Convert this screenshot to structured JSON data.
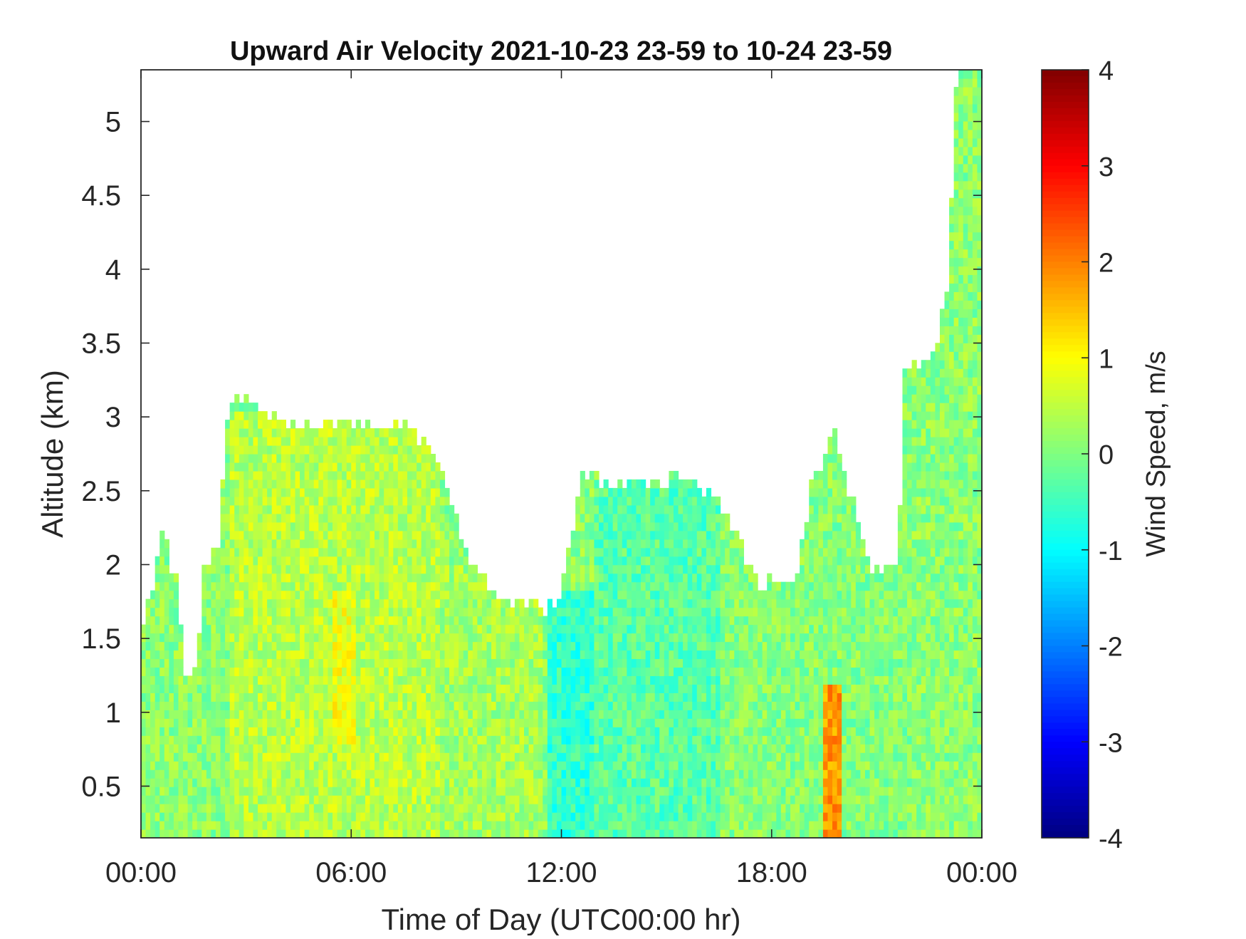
{
  "chart_data": {
    "type": "heatmap",
    "title": "Upward Air Velocity 2021-10-23 23-59 to 10-24 23-59",
    "xlabel": "Time of Day (UTC00:00 hr)",
    "ylabel": "Altitude (km)",
    "x_ticks": [
      "00:00",
      "06:00",
      "12:00",
      "18:00",
      "00:00"
    ],
    "x_tick_hours": [
      0,
      6,
      12,
      18,
      24
    ],
    "xlim_hours": [
      0,
      24
    ],
    "y_ticks": [
      "0.5",
      "1",
      "1.5",
      "2",
      "2.5",
      "3",
      "3.5",
      "4",
      "4.5",
      "5"
    ],
    "y_tick_values": [
      0.5,
      1,
      1.5,
      2,
      2.5,
      3,
      3.5,
      4,
      4.5,
      5
    ],
    "ylim": [
      0.15,
      5.35
    ],
    "colorbar": {
      "label": "Wind Speed, m/s",
      "colormap": "jet",
      "range": [
        -4,
        4
      ],
      "ticks": [
        "4",
        "3",
        "2",
        "1",
        "0",
        "-1",
        "-2",
        "-3",
        "-4"
      ],
      "tick_values": [
        4,
        3,
        2,
        1,
        0,
        -1,
        -2,
        -3,
        -4
      ]
    },
    "grid": false,
    "data_top_km": [
      {
        "hour": 0.0,
        "top_km": 1.6
      },
      {
        "hour": 0.3,
        "top_km": 1.85
      },
      {
        "hour": 0.6,
        "top_km": 2.2
      },
      {
        "hour": 1.0,
        "top_km": 1.9
      },
      {
        "hour": 1.3,
        "top_km": 1.2
      },
      {
        "hour": 1.6,
        "top_km": 1.35
      },
      {
        "hour": 1.8,
        "top_km": 2.0
      },
      {
        "hour": 2.2,
        "top_km": 2.1
      },
      {
        "hour": 2.5,
        "top_km": 3.15
      },
      {
        "hour": 3.5,
        "top_km": 3.05
      },
      {
        "hour": 4.5,
        "top_km": 2.95
      },
      {
        "hour": 7.5,
        "top_km": 2.95
      },
      {
        "hour": 8.5,
        "top_km": 2.7
      },
      {
        "hour": 9.5,
        "top_km": 1.95
      },
      {
        "hour": 10.2,
        "top_km": 1.8
      },
      {
        "hour": 11.5,
        "top_km": 1.7
      },
      {
        "hour": 12.0,
        "top_km": 1.8
      },
      {
        "hour": 12.6,
        "top_km": 2.6
      },
      {
        "hour": 13.5,
        "top_km": 2.55
      },
      {
        "hour": 14.8,
        "top_km": 2.55
      },
      {
        "hour": 15.5,
        "top_km": 2.6
      },
      {
        "hour": 16.2,
        "top_km": 2.5
      },
      {
        "hour": 17.0,
        "top_km": 2.2
      },
      {
        "hour": 17.6,
        "top_km": 1.85
      },
      {
        "hour": 18.3,
        "top_km": 1.9
      },
      {
        "hour": 18.8,
        "top_km": 2.0
      },
      {
        "hour": 19.2,
        "top_km": 2.6
      },
      {
        "hour": 19.8,
        "top_km": 2.9
      },
      {
        "hour": 20.2,
        "top_km": 2.5
      },
      {
        "hour": 20.8,
        "top_km": 2.0
      },
      {
        "hour": 21.6,
        "top_km": 1.95
      },
      {
        "hour": 21.8,
        "top_km": 3.3
      },
      {
        "hour": 22.6,
        "top_km": 3.4
      },
      {
        "hour": 23.0,
        "top_km": 3.8
      },
      {
        "hour": 23.3,
        "top_km": 5.35
      },
      {
        "hour": 24.0,
        "top_km": 5.35
      }
    ],
    "velocity_regions": [
      {
        "hours": [
          0,
          2.5
        ],
        "alt_km": [
          0.15,
          2.2
        ],
        "mean_ms": 0.1
      },
      {
        "hours": [
          2.5,
          8.5
        ],
        "alt_km": [
          0.15,
          3.05
        ],
        "mean_ms": 0.45
      },
      {
        "hours": [
          5.5,
          6.2
        ],
        "alt_km": [
          0.8,
          1.8
        ],
        "mean_ms": 0.85
      },
      {
        "hours": [
          8.5,
          11.5
        ],
        "alt_km": [
          0.15,
          2.0
        ],
        "mean_ms": 0.3
      },
      {
        "hours": [
          11.6,
          13.0
        ],
        "alt_km": [
          0.15,
          1.8
        ],
        "mean_ms": -0.6
      },
      {
        "hours": [
          13.0,
          16.5
        ],
        "alt_km": [
          0.15,
          2.55
        ],
        "mean_ms": -0.3
      },
      {
        "hours": [
          16.5,
          22.0
        ],
        "alt_km": [
          0.15,
          2.5
        ],
        "mean_ms": 0.05
      },
      {
        "hours": [
          19.5,
          20.0
        ],
        "alt_km": [
          0.15,
          1.2
        ],
        "mean_ms": 1.8
      },
      {
        "hours": [
          22.0,
          24.0
        ],
        "alt_km": [
          0.15,
          5.35
        ],
        "mean_ms": 0.1
      }
    ]
  }
}
